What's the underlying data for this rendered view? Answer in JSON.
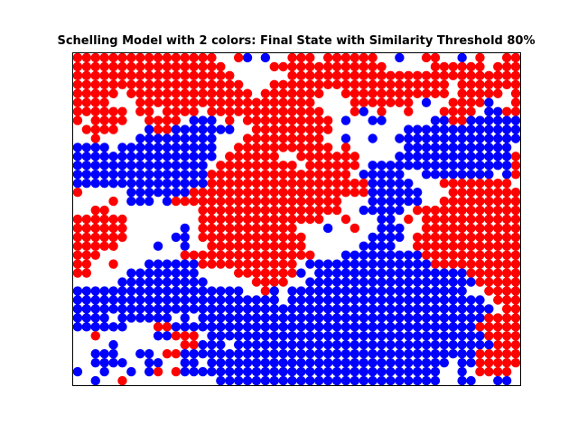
{
  "chart_data": {
    "type": "scatter",
    "title": "Schelling Model with 2 colors: Final State with Similarity Threshold 80%",
    "xlabel": "",
    "ylabel": "",
    "axes_visible": false,
    "grid": false,
    "xlim": [
      -0.5,
      49.5
    ],
    "ylim": [
      -0.5,
      36.5
    ],
    "origin": "top-left",
    "colors": {
      "red": "#ff0000",
      "blue": "#0000ff"
    },
    "cell_map_legend": {
      "R": "red",
      "B": "blue",
      ".": "empty"
    },
    "rows": [
      "RRRRRRRRRRRRRRRR..RB.B..RRR.RRRRRR..B..RR..B.R..RR",
      "RRRRRRRRRRRRRRRRR.....RRRRRRRRRRRRR.....RRRRRR.RRR",
      "RRRRRRRRRRRRRRRRRR......RRRRRRRRRRRRRRRRRRRRRRRRRR",
      "RRRRRRRRRRRRRRRRRRR...RRRRRRRRRRRRRRRRRRRR.RRRRRRR",
      "RRRRR.RRRRRRRRRRRRRR.RRRRRRR..RRRRRRRRRRRR.RRRRR.R",
      "RRRR...RRRRRRRRRRRRRRRRRRRR....RRRRRRR.B..RRRRB..R",
      "RRRRRR.RR.RRRR.RRRRRRRRRRRRR...RB.R..R...RRRR.BBRR",
      "R.RRRR..RRRR.BBB.R.RRRRRRRRRR.B..BB.....BBRRBBBBBB",
      ".RRRR...BRRBBBBBBB..RRRRRRRRR........BBBBBBBBBBBBB",
      "..R....BBBBBBBBB...RRRRRRRRR..B..B..BBBBBBBBBBBBBB",
      "BBBB.BBBBBBBBBBB..RRRRRRRRRRR.R......BBBBBBBBBBBB.",
      "BBBBBBBBBBBBBBBB.RRRRRR..RRRRRRR....BBBBBBBBBBBBBR",
      "BBBBBBBBBBBBBBB.RRRRRRRRR.RRRRRR.BBBBBBBBBBBBBBBBR",
      "BBBBBBBBBBBBBBBRRRRRRRRRRRRRRRR.BBBBB..BBBBBBBB.BR",
      "BBBBBBBBBBBBBBBRRRRRRRRRRRRRRRRRRBBBBB...RRRRRRRR.",
      "R.....BBBBBBBRRRRRRRRRRRRRRRRRRRRBBBBBB...RRRRRRRR",
      "....R.BBB.BRRRRRRRRRRRRRRRRRRR...BBBBBB..RRRRRRRRR",
      "..RR..........RRRRRRRRRRRRRRRR..BBBBB.RRRRRRRRRRRR",
      "RRRRRR........RRRRRRRRRRRRRR..R...BB.R.RRRRRRRRRRR",
      "RRRRRR......B.RRRRRRRRRRR...B..R..BBB..RRRRRRRRRRR",
      "RRRRRR.....BB.RRRRRRRRRRRR.......BBBB.RRRRRRRRRRRR",
      "RRRRR....B..B..RRRRRRRRRRR......BBBB..RRRRRRRRRRRR",
      "RRR.........RRRRRRRRRRRRRRR...BBBBBBBBBRRRRRRRRRRR",
      "RR..R...BBBBBBRRRRRRRRRRR.BBBBBBBBBBBBBBRRRRRRRRRR",
      "RR....BBBBBBBB....RRRRRRRB.BBBBBBBBBBBBBBBBBRRRRRR",
      ".....BBBBBBBBBB.....RRRR..BBBBBBBBBBBBBBBBBBBRRRRR",
      "BBBBBBBBBBBBBBBBBBB..RB.BBBBBBBBBBBBBBBBBBBB..RRRR",
      "BBBBBBBBBBBBBBBBBBBBBBB.BBBBBBBBBBBBBBBBBBBBBB.RRR",
      "BBBBBBBBBBBBBBBBBBBBBBBBBBBBBBBBBBBBBBBBBBBBBBB.RR",
      "BBBB.BBBBBB.B.BBBBBBBBBBBBBBBBBBBBBBBBBBBBBBBBRRRR",
      "BBBBBB...RRBBBBBBBBBBBBBBBBBBBBBBBBBBBBBBBBBBRRRRR",
      "..R......BBRRR.BBBBBBBBBBBBBBBBBBBBBBBBBBBBBBBRRRR",
      "....B.......RRBBB.BBBBBBBBBBBBBBBBBBBBBBBBBBBBBRRR",
      "..BBB..BB.RRBBBBBBBBBBBBBBBBBBBBBBBBBBBBBBBBBRRRRR",
      "..BBBB..BB..BB.BBBBBBBBBBBBBBBBBBBBBBBBBBB.BBRRRRR",
      "B..B..B.BR.RBBBBBBBBBBBBBBBBBBBBBBBBBBBBB..B.RRRR.",
      "..B..R..........BBBBBBBBBBBBBBBBBBBBBBBBB..BB..BB."
    ]
  }
}
